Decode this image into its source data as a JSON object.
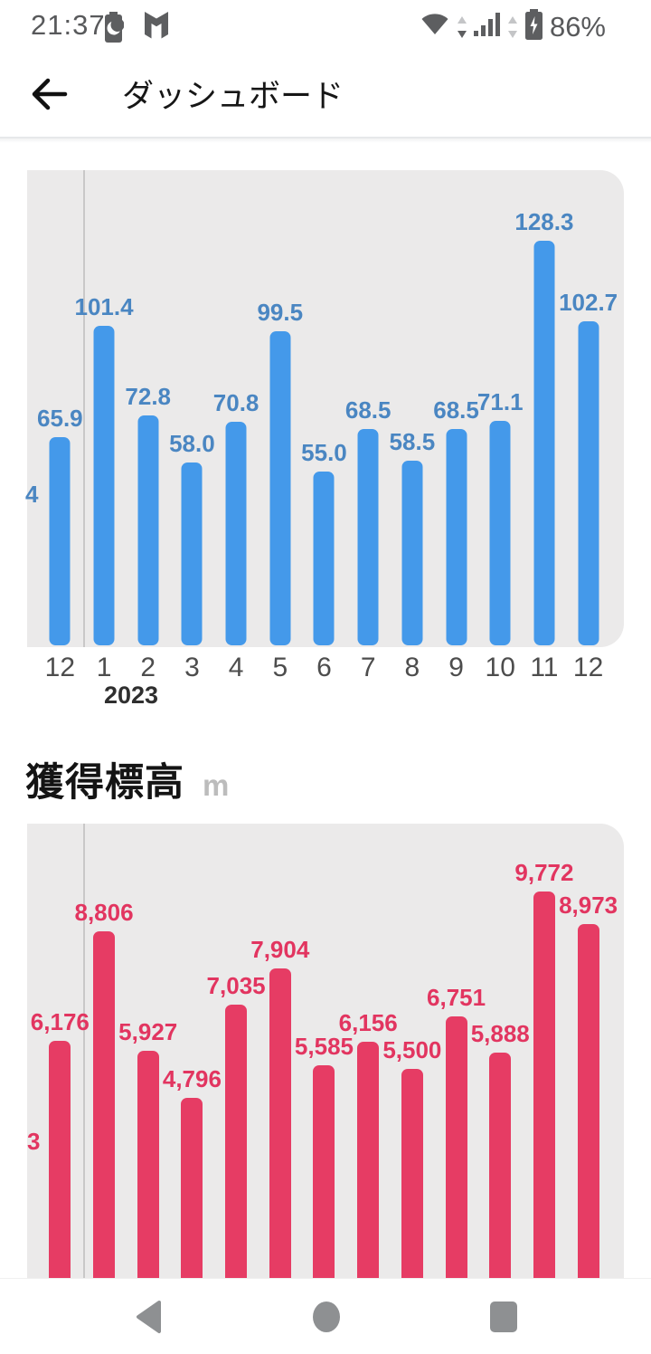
{
  "status_bar": {
    "time": "21:37",
    "battery_percent": "86%",
    "icons": [
      "battery-saver",
      "mcafee-shield",
      "wifi",
      "cellular-signal",
      "battery-charging"
    ]
  },
  "app_bar": {
    "title": "ダッシュボード",
    "back_icon": "arrow-left"
  },
  "elevation_section": {
    "title": "獲得標高",
    "unit": "m"
  },
  "colors": {
    "chart1_bar": "#4499ea",
    "chart1_label": "#4a86c2",
    "chart2_bar": "#e63c64",
    "chart2_label": "#e23560",
    "plot_background": "#ebeaea",
    "gridline": "#c9c8c8"
  },
  "chart_data": [
    {
      "type": "bar",
      "id": "monthly-chart-top",
      "categories": [
        "12",
        "1",
        "2",
        "3",
        "4",
        "5",
        "6",
        "7",
        "8",
        "9",
        "10",
        "11",
        "12"
      ],
      "year_label": "2023",
      "year_label_under_category_index": 1,
      "values": [
        65.9,
        101.4,
        72.8,
        58.0,
        70.8,
        99.5,
        55.0,
        68.5,
        58.5,
        68.5,
        71.1,
        128.3,
        102.7
      ],
      "value_labels": [
        "65.9",
        "101.4",
        "72.8",
        "58.0",
        "70.8",
        "99.5",
        "55.0",
        "68.5",
        "58.5",
        "68.5",
        "71.1",
        "128.3",
        "102.7"
      ],
      "clipped_left_value_label": "4",
      "bar_color": "#4499ea",
      "value_label_color": "#4a86c2",
      "plot_bg": "#ebeaea",
      "grid": "single vertical year divider between first and second bar",
      "legend": "none",
      "ylim": [
        0,
        151
      ],
      "x_axis_visible": true
    },
    {
      "type": "bar",
      "id": "elevation-gain-chart",
      "title": "獲得標高",
      "ylabel": "m",
      "categories": [
        "12",
        "1",
        "2",
        "3",
        "4",
        "5",
        "6",
        "7",
        "8",
        "9",
        "10",
        "11",
        "12"
      ],
      "values": [
        6176,
        8806,
        5927,
        4796,
        7035,
        7904,
        5585,
        6156,
        5500,
        6751,
        5888,
        9772,
        8973
      ],
      "value_labels": [
        "6,176",
        "8,806",
        "5,927",
        "4,796",
        "7,035",
        "7,904",
        "5,585",
        "6,156",
        "5,500",
        "6,751",
        "5,888",
        "9,772",
        "8,973"
      ],
      "clipped_left_value_label": "3",
      "bar_color": "#e63c64",
      "value_label_color": "#e23560",
      "plot_bg": "#ebeaea",
      "grid": "single vertical year divider between first and second bar",
      "legend": "none",
      "ylim": [
        0,
        11400
      ],
      "x_axis_visible": false,
      "note": "bottom of chart clipped by navigation bar"
    }
  ],
  "nav_bar": {
    "buttons": [
      "back",
      "home",
      "recents"
    ]
  }
}
